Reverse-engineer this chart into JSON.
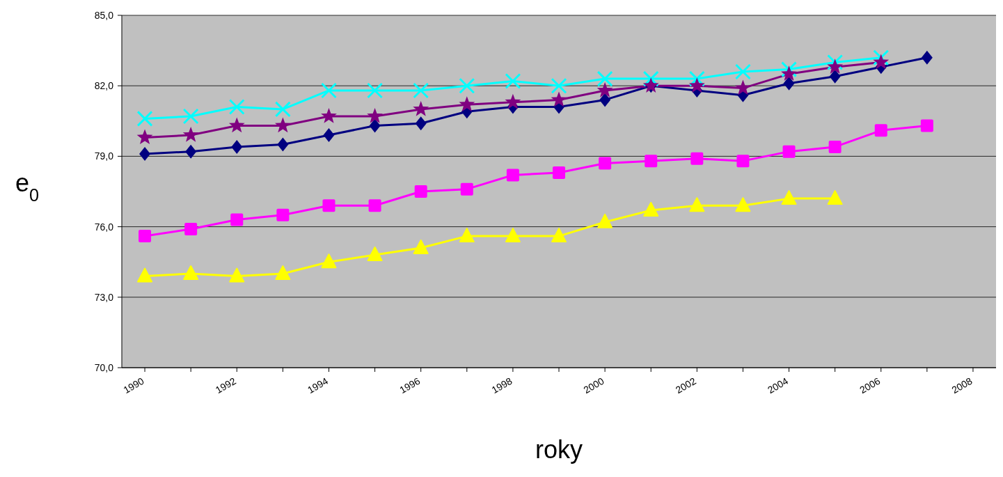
{
  "chart_data": {
    "type": "line",
    "xlabel": "roky",
    "ylabel": "e$_{0}$",
    "categories": [
      "1990",
      null,
      "1992",
      null,
      "1994",
      null,
      "1996",
      null,
      "1998",
      null,
      "2000",
      null,
      "2002",
      null,
      "2004",
      null,
      "2006",
      null,
      "2008"
    ],
    "ylim": [
      70,
      85
    ],
    "yticks": [
      {
        "value": 70,
        "label": "70,0"
      },
      {
        "value": 73,
        "label": "73,0"
      },
      {
        "value": 76,
        "label": "76,0"
      },
      {
        "value": 79,
        "label": "79,0"
      },
      {
        "value": 82,
        "label": "82,0"
      },
      {
        "value": 85,
        "label": "85,0"
      }
    ],
    "grid": "y",
    "legend": false,
    "line_style": "solid",
    "series": [
      {
        "color": "#000080",
        "marker": "diamond",
        "values": [
          79.1,
          79.2,
          79.4,
          79.5,
          79.9,
          80.3,
          80.4,
          80.9,
          81.1,
          81.1,
          81.4,
          82.0,
          81.8,
          81.6,
          82.1,
          82.4,
          82.8,
          83.2,
          null
        ]
      },
      {
        "color": "#ff00ff",
        "marker": "square",
        "values": [
          75.6,
          75.9,
          76.3,
          76.5,
          76.9,
          76.9,
          77.5,
          77.6,
          78.2,
          78.3,
          78.7,
          78.8,
          78.9,
          78.8,
          79.2,
          79.4,
          80.1,
          80.3,
          null
        ]
      },
      {
        "color": "#ffff00",
        "marker": "triangle",
        "values": [
          73.9,
          74.0,
          73.9,
          74.0,
          74.5,
          74.8,
          75.1,
          75.6,
          75.6,
          75.6,
          76.2,
          76.7,
          76.9,
          76.9,
          77.2,
          77.2,
          null,
          null,
          null
        ]
      },
      {
        "color": "#00ffff",
        "marker": "cross",
        "values": [
          80.6,
          80.7,
          81.1,
          81.0,
          81.8,
          81.8,
          81.8,
          82.0,
          82.2,
          82.0,
          82.3,
          82.3,
          82.3,
          82.6,
          82.7,
          83.0,
          83.2,
          null,
          null
        ]
      },
      {
        "color": "#800080",
        "marker": "star",
        "values": [
          79.8,
          79.9,
          80.3,
          80.3,
          80.7,
          80.7,
          81.0,
          81.2,
          81.3,
          81.4,
          81.8,
          82.0,
          82.0,
          81.9,
          82.5,
          82.8,
          83.0,
          null,
          null
        ]
      }
    ]
  }
}
